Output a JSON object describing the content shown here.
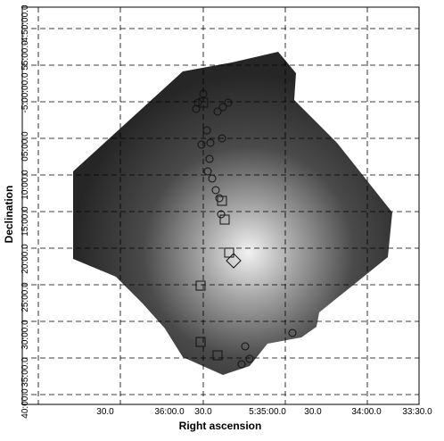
{
  "axes": {
    "x_label": "Right ascension",
    "y_label": "Declination",
    "x_ticks": [
      "30.0",
      "36:00.0",
      "30.0",
      "5:35:00.0",
      "30.0",
      "34:00.0",
      "33:30.0"
    ],
    "y_ticks": [
      "-4:50:00.0",
      "55:00.0",
      "-5:00:00.0",
      "05:00.0",
      "10:00.0",
      "15:00.0",
      "20:00.0",
      "25:00.0",
      "30:00.0",
      "35:00.0",
      "40:00.0"
    ]
  }
}
